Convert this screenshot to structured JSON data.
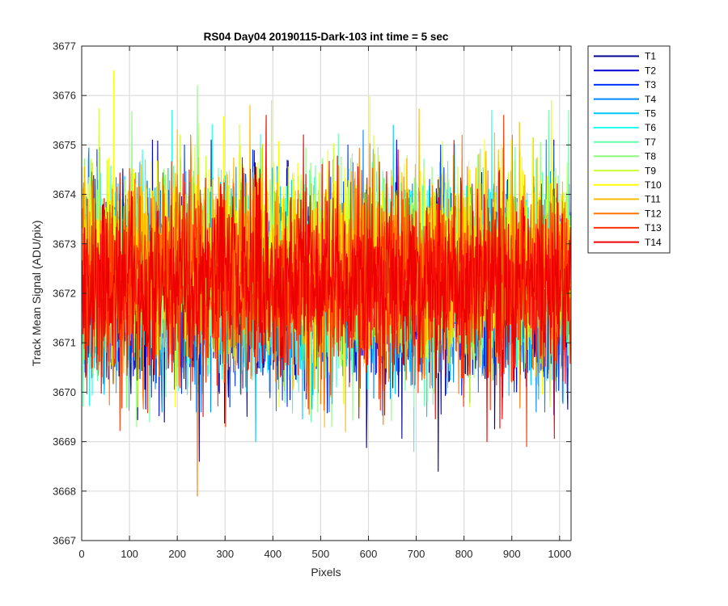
{
  "chart_data": {
    "type": "line",
    "title": "RS04 Day04 20190115-Dark-103 int time = 5 sec",
    "xlabel": "Pixels",
    "ylabel": "Track Mean Signal (ADU/pix)",
    "xlim": [
      0,
      1024
    ],
    "ylim": [
      3667,
      3677
    ],
    "xticks": [
      0,
      100,
      200,
      300,
      400,
      500,
      600,
      700,
      800,
      900,
      1000
    ],
    "yticks": [
      3667,
      3668,
      3669,
      3670,
      3671,
      3672,
      3673,
      3674,
      3675,
      3676,
      3677
    ],
    "grid": true,
    "legend_position": "outside-top-right",
    "noise_profile": {
      "x_start": 1,
      "x_end": 1024,
      "mean": 3672.3,
      "spread": 0.95
    },
    "series": [
      {
        "name": "T1",
        "color": "#00008f",
        "mean": 3672.0,
        "min": 3668.4,
        "max": 3675.1
      },
      {
        "name": "T2",
        "color": "#0000d6",
        "mean": 3672.0,
        "min": 3668.6,
        "max": 3675.1
      },
      {
        "name": "T3",
        "color": "#0033ff",
        "mean": 3672.1,
        "min": 3669.7,
        "max": 3675.0
      },
      {
        "name": "T4",
        "color": "#0088ff",
        "mean": 3672.1,
        "min": 3669.6,
        "max": 3675.3
      },
      {
        "name": "T5",
        "color": "#00c8ff",
        "mean": 3672.2,
        "min": 3669.0,
        "max": 3675.4
      },
      {
        "name": "T6",
        "color": "#22ffee",
        "mean": 3672.3,
        "min": 3668.8,
        "max": 3675.7
      },
      {
        "name": "T7",
        "color": "#66ffaa",
        "mean": 3672.4,
        "min": 3669.4,
        "max": 3675.7
      },
      {
        "name": "T8",
        "color": "#88ff77",
        "mean": 3672.5,
        "min": 3669.3,
        "max": 3676.2
      },
      {
        "name": "T9",
        "color": "#ccff33",
        "mean": 3672.6,
        "min": 3669.7,
        "max": 3675.9
      },
      {
        "name": "T10",
        "color": "#ffff00",
        "mean": 3672.7,
        "min": 3669.7,
        "max": 3676.5
      },
      {
        "name": "T11",
        "color": "#ffbb00",
        "mean": 3672.5,
        "min": 3669.2,
        "max": 3675.8
      },
      {
        "name": "T12",
        "color": "#ff7700",
        "mean": 3672.3,
        "min": 3667.9,
        "max": 3675.2
      },
      {
        "name": "T13",
        "color": "#ff3300",
        "mean": 3672.2,
        "min": 3668.9,
        "max": 3675.6
      },
      {
        "name": "T14",
        "color": "#ee0000",
        "mean": 3672.2,
        "min": 3669.0,
        "max": 3675.6
      }
    ]
  }
}
